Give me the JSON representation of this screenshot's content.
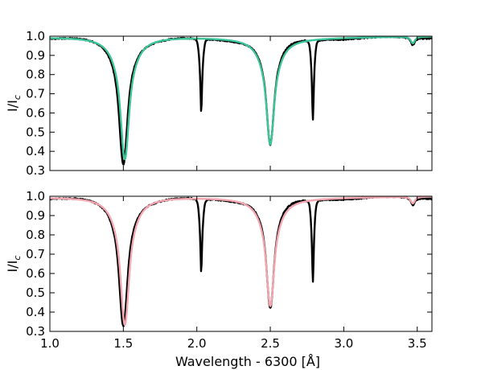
{
  "figure": {
    "xlabel": "Wavelength - 6300 [Å]"
  },
  "chart_data": [
    {
      "type": "line",
      "ylabel": "I/I",
      "ylabel_sub": "c",
      "xlim": [
        1.0,
        3.6
      ],
      "ylim": [
        0.3,
        1.0
      ],
      "xticks": [
        "1.0",
        "1.5",
        "2.0",
        "2.5",
        "3.0",
        "3.5"
      ],
      "yticks": [
        "0.3",
        "0.4",
        "0.5",
        "0.6",
        "0.7",
        "0.8",
        "0.9",
        "1.0"
      ],
      "show_xticklabels": false,
      "series": [
        {
          "color": "#000000",
          "lines": [
            {
              "center": 1.5,
              "depth": 0.655,
              "width": 0.055,
              "gwidth": 0.02
            },
            {
              "center": 2.03,
              "depth": 0.385,
              "width": 0.006,
              "gwidth": 0.012
            },
            {
              "center": 2.5,
              "depth": 0.56,
              "width": 0.052,
              "gwidth": 0.018
            },
            {
              "center": 2.79,
              "depth": 0.42,
              "width": 0.006,
              "gwidth": 0.011
            },
            {
              "center": 3.47,
              "depth": 0.04,
              "width": 0.02,
              "gwidth": 0.01
            }
          ]
        },
        {
          "color": "#3cc59a",
          "lines": [
            {
              "center": 1.51,
              "depth": 0.64,
              "width": 0.058,
              "gwidth": 0.02
            },
            {
              "center": 2.5,
              "depth": 0.555,
              "width": 0.055,
              "gwidth": 0.018
            },
            {
              "center": 3.47,
              "depth": 0.035,
              "width": 0.022,
              "gwidth": 0.01
            }
          ]
        }
      ]
    },
    {
      "type": "line",
      "ylabel": "I/I",
      "ylabel_sub": "c",
      "xlim": [
        1.0,
        3.6
      ],
      "ylim": [
        0.3,
        1.0
      ],
      "xticks": [
        "1.0",
        "1.5",
        "2.0",
        "2.5",
        "3.0",
        "3.5"
      ],
      "yticks": [
        "0.3",
        "0.4",
        "0.5",
        "0.6",
        "0.7",
        "0.8",
        "0.9",
        "1.0"
      ],
      "show_xticklabels": true,
      "series": [
        {
          "color": "#000000",
          "lines": [
            {
              "center": 1.5,
              "depth": 0.66,
              "width": 0.055,
              "gwidth": 0.02
            },
            {
              "center": 2.03,
              "depth": 0.385,
              "width": 0.006,
              "gwidth": 0.012
            },
            {
              "center": 2.5,
              "depth": 0.575,
              "width": 0.05,
              "gwidth": 0.018
            },
            {
              "center": 2.79,
              "depth": 0.425,
              "width": 0.006,
              "gwidth": 0.011
            },
            {
              "center": 3.47,
              "depth": 0.04,
              "width": 0.02,
              "gwidth": 0.01
            }
          ]
        },
        {
          "color": "#f4a6b0",
          "lines": [
            {
              "center": 1.51,
              "depth": 0.665,
              "width": 0.058,
              "gwidth": 0.02
            },
            {
              "center": 2.5,
              "depth": 0.56,
              "width": 0.055,
              "gwidth": 0.018
            },
            {
              "center": 3.47,
              "depth": 0.035,
              "width": 0.022,
              "gwidth": 0.01
            }
          ]
        }
      ]
    }
  ]
}
